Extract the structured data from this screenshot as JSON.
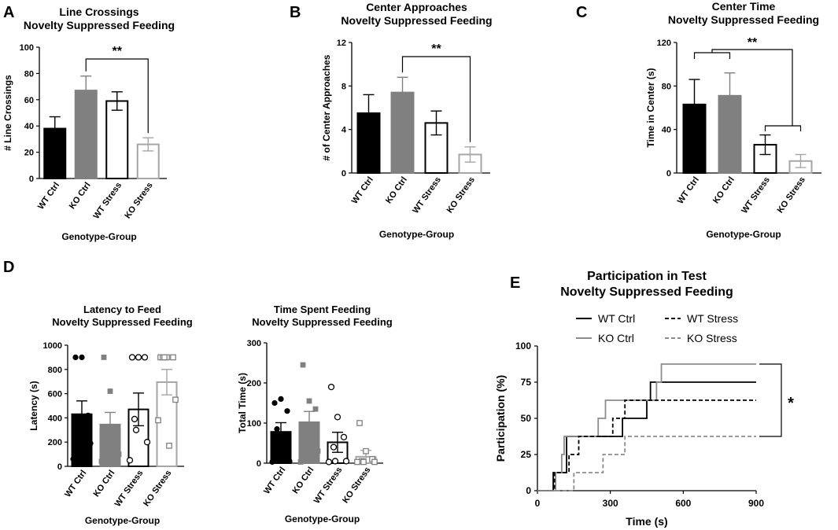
{
  "panel_labels": [
    "A",
    "B",
    "C",
    "D",
    "E"
  ],
  "colors": {
    "black": "#000000",
    "gray": "#808080",
    "light": "#a6a6a6",
    "white": "#ffffff"
  },
  "chart_data": [
    {
      "id": "A",
      "type": "bar",
      "title": [
        "Line Crossings",
        "Novelty Suppressed Feeding"
      ],
      "xlabel": "Genotype-Group",
      "ylabel": "# Line Crossings",
      "ylim": [
        0,
        100
      ],
      "yticks": [
        0,
        20,
        40,
        60,
        80,
        100
      ],
      "categories": [
        "WT Ctrl",
        "KO Ctrl",
        "WT Stress",
        "KO Stress"
      ],
      "values": [
        38,
        67,
        59,
        26
      ],
      "errors": [
        9,
        11,
        7,
        5
      ],
      "significance": "**"
    },
    {
      "id": "B",
      "type": "bar",
      "title": [
        "Center Approaches",
        "Novelty Suppressed Feeding"
      ],
      "xlabel": "Genotype-Group",
      "ylabel": "# of Center Approaches",
      "ylim": [
        0,
        12
      ],
      "yticks": [
        0,
        4,
        8,
        12
      ],
      "categories": [
        "WT Ctrl",
        "KO Ctrl",
        "WT Stress",
        "KO Stress"
      ],
      "values": [
        5.5,
        7.4,
        4.6,
        1.7
      ],
      "errors": [
        1.7,
        1.4,
        1.1,
        0.7
      ],
      "significance": "**"
    },
    {
      "id": "C",
      "type": "bar",
      "title": [
        "Center Time",
        "Novelty Suppressed Feeding"
      ],
      "xlabel": "Genotype-Group",
      "ylabel": "Time in Center (s)",
      "ylim": [
        0,
        120
      ],
      "yticks": [
        0,
        40,
        80,
        120
      ],
      "categories": [
        "WT Ctrl",
        "KO Ctrl",
        "WT Stress",
        "KO Stress"
      ],
      "values": [
        63,
        71,
        26,
        11
      ],
      "errors": [
        23,
        21,
        9,
        6
      ],
      "significance": "**"
    },
    {
      "id": "D1",
      "type": "bar",
      "title": [
        "Latency to Feed",
        "Novelty Suppressed Feeding"
      ],
      "xlabel": "Genotype-Group",
      "ylabel": "Latency (s)",
      "ylim": [
        0,
        1000
      ],
      "yticks": [
        0,
        200,
        400,
        600,
        800,
        1000
      ],
      "categories": [
        "WT Ctrl",
        "KO Ctrl",
        "WT Stress",
        "KO Stress"
      ],
      "values": [
        430,
        345,
        470,
        695
      ],
      "errors": [
        110,
        100,
        135,
        105
      ],
      "points": [
        [
          900,
          900,
          420,
          320,
          250,
          190,
          60
        ],
        [
          900,
          620,
          250,
          200,
          110,
          100,
          40
        ],
        [
          900,
          900,
          900,
          390,
          300,
          200,
          50
        ],
        [
          900,
          900,
          900,
          900,
          900,
          550,
          380,
          170
        ]
      ]
    },
    {
      "id": "D2",
      "type": "bar",
      "title": [
        "Time Spent Feeding",
        "Novelty Suppressed Feeding"
      ],
      "xlabel": "Genotype-Group",
      "ylabel": "Total Time (s)",
      "ylim": [
        0,
        300
      ],
      "yticks": [
        0,
        100,
        200,
        300
      ],
      "categories": [
        "WT Ctrl",
        "KO Ctrl",
        "WT Stress",
        "KO Stress"
      ],
      "values": [
        78,
        102,
        52,
        16
      ],
      "errors": [
        23,
        27,
        25,
        16
      ],
      "points": [
        [
          150,
          160,
          130,
          85,
          40,
          5,
          3
        ],
        [
          245,
          155,
          135,
          75,
          60,
          30,
          3
        ],
        [
          190,
          115,
          65,
          40,
          5,
          5,
          3
        ],
        [
          100,
          30,
          10,
          5,
          3,
          3,
          3
        ]
      ]
    },
    {
      "id": "E",
      "type": "line",
      "title": [
        "Participation in Test",
        "Novelty Suppressed Feeding"
      ],
      "xlabel": "Time (s)",
      "ylabel": "Participation (%)",
      "xlim": [
        0,
        900
      ],
      "ylim": [
        0,
        100
      ],
      "xticks": [
        0,
        300,
        600,
        900
      ],
      "yticks": [
        0,
        25,
        50,
        75,
        100
      ],
      "series": [
        {
          "name": "WT Ctrl",
          "style": "solid-black",
          "steps": [
            [
              0,
              0
            ],
            [
              65,
              12.5
            ],
            [
              120,
              37.5
            ],
            [
              350,
              50
            ],
            [
              450,
              62.5
            ],
            [
              465,
              75
            ],
            [
              900,
              75
            ]
          ]
        },
        {
          "name": "KO Ctrl",
          "style": "solid-gray",
          "steps": [
            [
              0,
              0
            ],
            [
              75,
              12.5
            ],
            [
              100,
              25
            ],
            [
              110,
              37.5
            ],
            [
              250,
              50
            ],
            [
              280,
              62.5
            ],
            [
              490,
              75
            ],
            [
              510,
              87.5
            ],
            [
              900,
              87.5
            ]
          ]
        },
        {
          "name": "WT Stress",
          "style": "dash-black",
          "steps": [
            [
              0,
              0
            ],
            [
              70,
              12.5
            ],
            [
              130,
              25
            ],
            [
              170,
              37.5
            ],
            [
              310,
              50
            ],
            [
              360,
              62.5
            ],
            [
              900,
              62.5
            ]
          ]
        },
        {
          "name": "KO Stress",
          "style": "dash-gray",
          "steps": [
            [
              0,
              0
            ],
            [
              150,
              12.5
            ],
            [
              270,
              25
            ],
            [
              360,
              37.5
            ],
            [
              900,
              37.5
            ]
          ]
        }
      ],
      "significance": "*"
    }
  ]
}
